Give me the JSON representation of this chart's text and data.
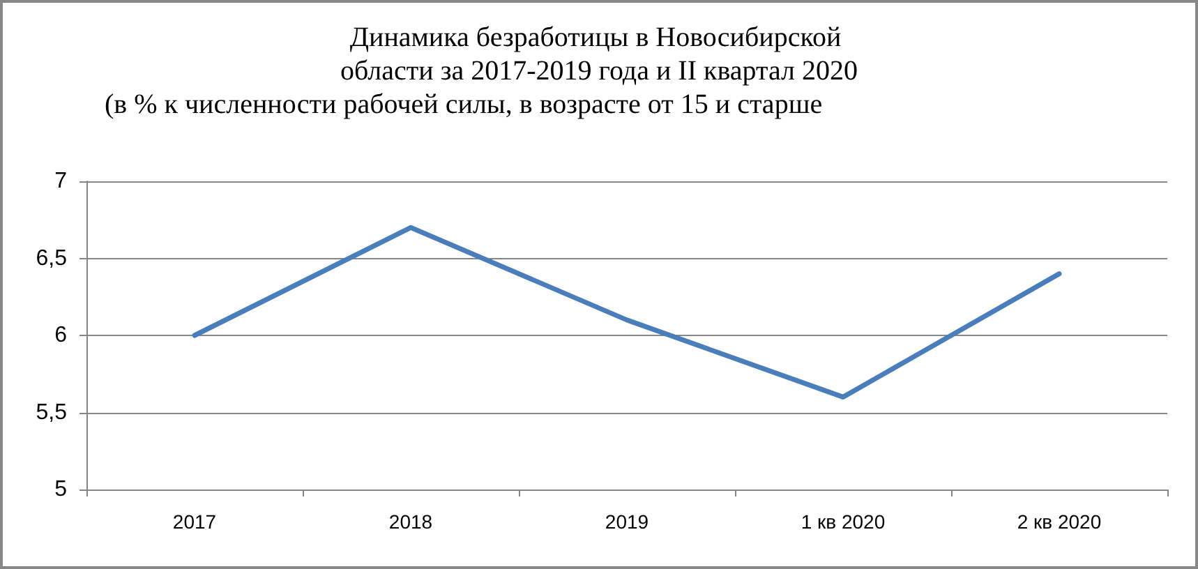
{
  "chart_data": {
    "type": "line",
    "title": "Динамика безработицы в Новосибирской области за 2017-2019 года и II квартал 2020",
    "subtitle": "(в % к численности рабочей силы, в возрасте от 15 и старше",
    "categories": [
      "2017",
      "2018",
      "2019",
      "1 кв 2020",
      "2 кв 2020"
    ],
    "series": [
      {
        "color": "#4a7ebb",
        "values": [
          6.0,
          6.7,
          6.1,
          5.6,
          6.4
        ]
      }
    ],
    "ylim": [
      5,
      7
    ],
    "yticks": [
      5,
      {
        "value": 5.5,
        "label": "5,5"
      },
      6,
      {
        "value": 6.5,
        "label": "6,5"
      },
      7
    ],
    "grid": "y",
    "marker": "none",
    "line_style": "solid"
  }
}
